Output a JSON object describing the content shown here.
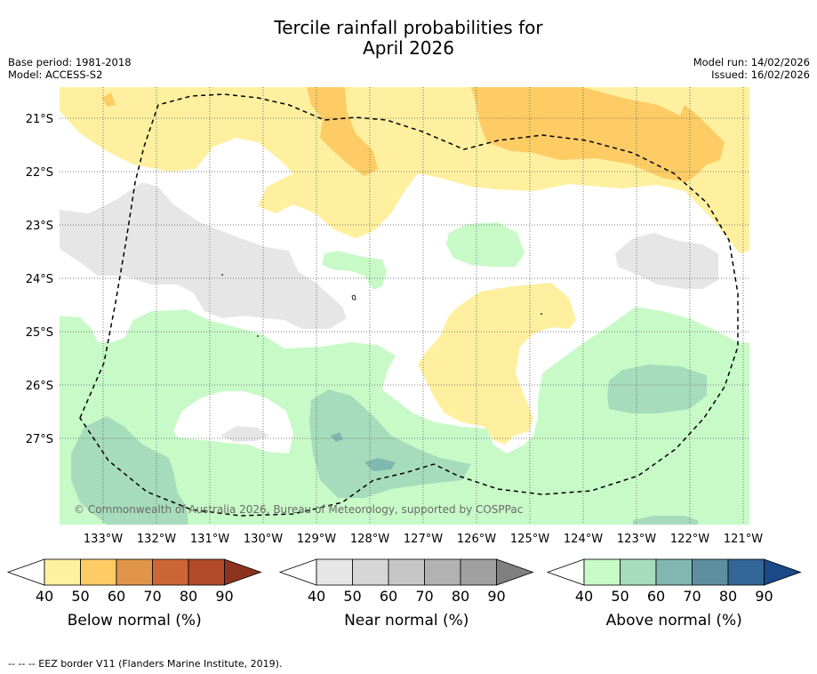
{
  "title_line1": "Tercile rainfall probabilities for",
  "title_line2": "April 2026",
  "meta": {
    "base_period": "Base period: 1981-2018",
    "model": "Model: ACCESS-S2",
    "model_run": "Model run: 14/02/2026",
    "issued": "Issued: 16/02/2026"
  },
  "map": {
    "lon_labels": [
      "133°W",
      "132°W",
      "131°W",
      "130°W",
      "129°W",
      "128°W",
      "127°W",
      "126°W",
      "125°W",
      "124°W",
      "123°W",
      "122°W",
      "121°W"
    ],
    "lat_labels": [
      "21°S",
      "22°S",
      "23°S",
      "24°S",
      "25°S",
      "26°S",
      "27°S"
    ],
    "attribution": "© Commonwealth of Australia 2026, Bureau of Meteorology, supported by COSPPac"
  },
  "colorbars": [
    {
      "title": "Below normal (%)",
      "ticks": [
        "40",
        "50",
        "60",
        "70",
        "80",
        "90"
      ],
      "colors": [
        "#fff0a0",
        "#fdcc65",
        "#e0954a",
        "#cc6634",
        "#b04a2a",
        "#8e3220"
      ]
    },
    {
      "title": "Near normal (%)",
      "ticks": [
        "40",
        "50",
        "60",
        "70",
        "80",
        "90"
      ],
      "colors": [
        "#e6e6e6",
        "#d6d6d6",
        "#c6c6c6",
        "#b2b2b2",
        "#a0a0a0",
        "#808080"
      ]
    },
    {
      "title": "Above normal (%)",
      "ticks": [
        "40",
        "50",
        "60",
        "70",
        "80",
        "90"
      ],
      "colors": [
        "#c8fac8",
        "#a6dcbb",
        "#80b7b0",
        "#5b8fa0",
        "#336699",
        "#1a4a88"
      ]
    }
  ],
  "footnote": "--  --  -- EEZ border V11 (Flanders Marine Institute, 2019)."
}
